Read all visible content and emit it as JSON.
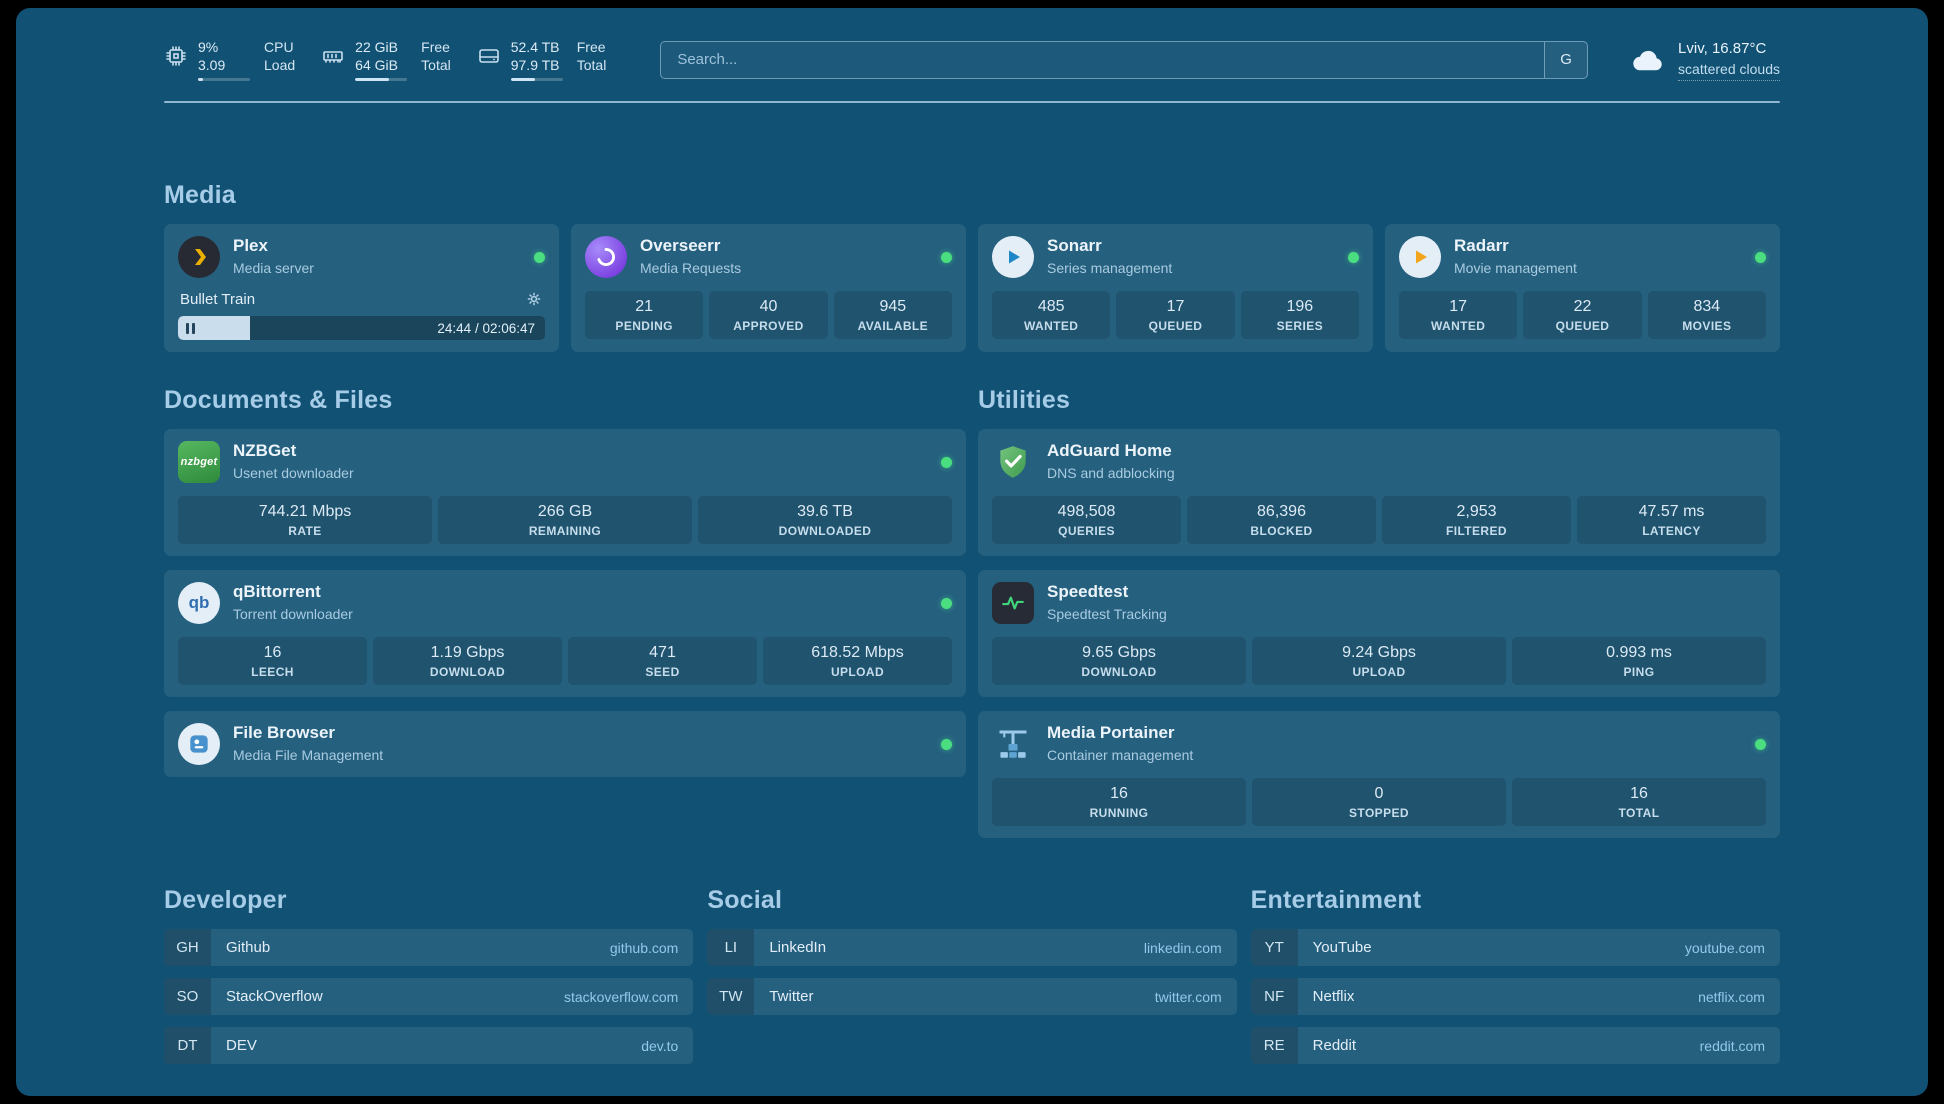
{
  "topbar": {
    "resources": [
      {
        "col1_top": "9%",
        "col1_bottom": "3.09",
        "col2_top": "CPU",
        "col2_bottom": "Load",
        "bar_percent": 9
      },
      {
        "col1_top": "22 GiB",
        "col1_bottom": "64 GiB",
        "col2_top": "Free",
        "col2_bottom": "Total",
        "bar_percent": 66
      },
      {
        "col1_top": "52.4 TB",
        "col1_bottom": "97.9 TB",
        "col2_top": "Free",
        "col2_bottom": "Total",
        "bar_percent": 47
      }
    ],
    "search": {
      "placeholder": "Search...",
      "button_label": "G"
    },
    "weather": {
      "location_temp": "Lviv, 16.87°C",
      "condition": "scattered clouds"
    }
  },
  "sections": {
    "media": "Media",
    "documents": "Documents & Files",
    "utilities": "Utilities"
  },
  "services": {
    "plex": {
      "title": "Plex",
      "subtitle": "Media server",
      "status": "online",
      "now_playing": {
        "title": "Bullet Train",
        "time": "24:44 / 02:06:47",
        "progress_percent": 19.5
      }
    },
    "overseerr": {
      "title": "Overseerr",
      "subtitle": "Media Requests",
      "status": "online",
      "stats": [
        {
          "value": "21",
          "label": "PENDING"
        },
        {
          "value": "40",
          "label": "APPROVED"
        },
        {
          "value": "945",
          "label": "AVAILABLE"
        }
      ]
    },
    "sonarr": {
      "title": "Sonarr",
      "subtitle": "Series management",
      "status": "online",
      "stats": [
        {
          "value": "485",
          "label": "WANTED"
        },
        {
          "value": "17",
          "label": "QUEUED"
        },
        {
          "value": "196",
          "label": "SERIES"
        }
      ]
    },
    "radarr": {
      "title": "Radarr",
      "subtitle": "Movie management",
      "status": "online",
      "stats": [
        {
          "value": "17",
          "label": "WANTED"
        },
        {
          "value": "22",
          "label": "QUEUED"
        },
        {
          "value": "834",
          "label": "MOVIES"
        }
      ]
    },
    "nzbget": {
      "title": "NZBGet",
      "subtitle": "Usenet downloader",
      "status": "online",
      "icon_text": "nzbget",
      "stats": [
        {
          "value": "744.21 Mbps",
          "label": "RATE"
        },
        {
          "value": "266 GB",
          "label": "REMAINING"
        },
        {
          "value": "39.6 TB",
          "label": "DOWNLOADED"
        }
      ]
    },
    "qbittorrent": {
      "title": "qBittorrent",
      "subtitle": "Torrent downloader",
      "status": "online",
      "icon_text": "qb",
      "stats": [
        {
          "value": "16",
          "label": "LEECH"
        },
        {
          "value": "1.19 Gbps",
          "label": "DOWNLOAD"
        },
        {
          "value": "471",
          "label": "SEED"
        },
        {
          "value": "618.52 Mbps",
          "label": "UPLOAD"
        }
      ]
    },
    "filebrowser": {
      "title": "File Browser",
      "subtitle": "Media File Management",
      "status": "online"
    },
    "adguard": {
      "title": "AdGuard Home",
      "subtitle": "DNS and adblocking",
      "stats": [
        {
          "value": "498,508",
          "label": "QUERIES"
        },
        {
          "value": "86,396",
          "label": "BLOCKED"
        },
        {
          "value": "2,953",
          "label": "FILTERED"
        },
        {
          "value": "47.57 ms",
          "label": "LATENCY"
        }
      ]
    },
    "speedtest": {
      "title": "Speedtest",
      "subtitle": "Speedtest Tracking",
      "stats": [
        {
          "value": "9.65 Gbps",
          "label": "DOWNLOAD"
        },
        {
          "value": "9.24 Gbps",
          "label": "UPLOAD"
        },
        {
          "value": "0.993 ms",
          "label": "PING"
        }
      ]
    },
    "portainer": {
      "title": "Media Portainer",
      "subtitle": "Container management",
      "status": "online",
      "stats": [
        {
          "value": "16",
          "label": "RUNNING"
        },
        {
          "value": "0",
          "label": "STOPPED"
        },
        {
          "value": "16",
          "label": "TOTAL"
        }
      ]
    }
  },
  "bookmarks": [
    {
      "heading": "Developer",
      "items": [
        {
          "abbr": "GH",
          "name": "Github",
          "url": "github.com"
        },
        {
          "abbr": "SO",
          "name": "StackOverflow",
          "url": "stackoverflow.com"
        },
        {
          "abbr": "DT",
          "name": "DEV",
          "url": "dev.to"
        }
      ]
    },
    {
      "heading": "Social",
      "items": [
        {
          "abbr": "LI",
          "name": "LinkedIn",
          "url": "linkedin.com"
        },
        {
          "abbr": "TW",
          "name": "Twitter",
          "url": "twitter.com"
        }
      ]
    },
    {
      "heading": "Entertainment",
      "items": [
        {
          "abbr": "YT",
          "name": "YouTube",
          "url": "youtube.com"
        },
        {
          "abbr": "NF",
          "name": "Netflix",
          "url": "netflix.com"
        },
        {
          "abbr": "RE",
          "name": "Reddit",
          "url": "reddit.com"
        }
      ]
    }
  ],
  "colors": {
    "background": "#115173",
    "status_green": "#4ade80",
    "accent_text": "#A6CCE8"
  }
}
